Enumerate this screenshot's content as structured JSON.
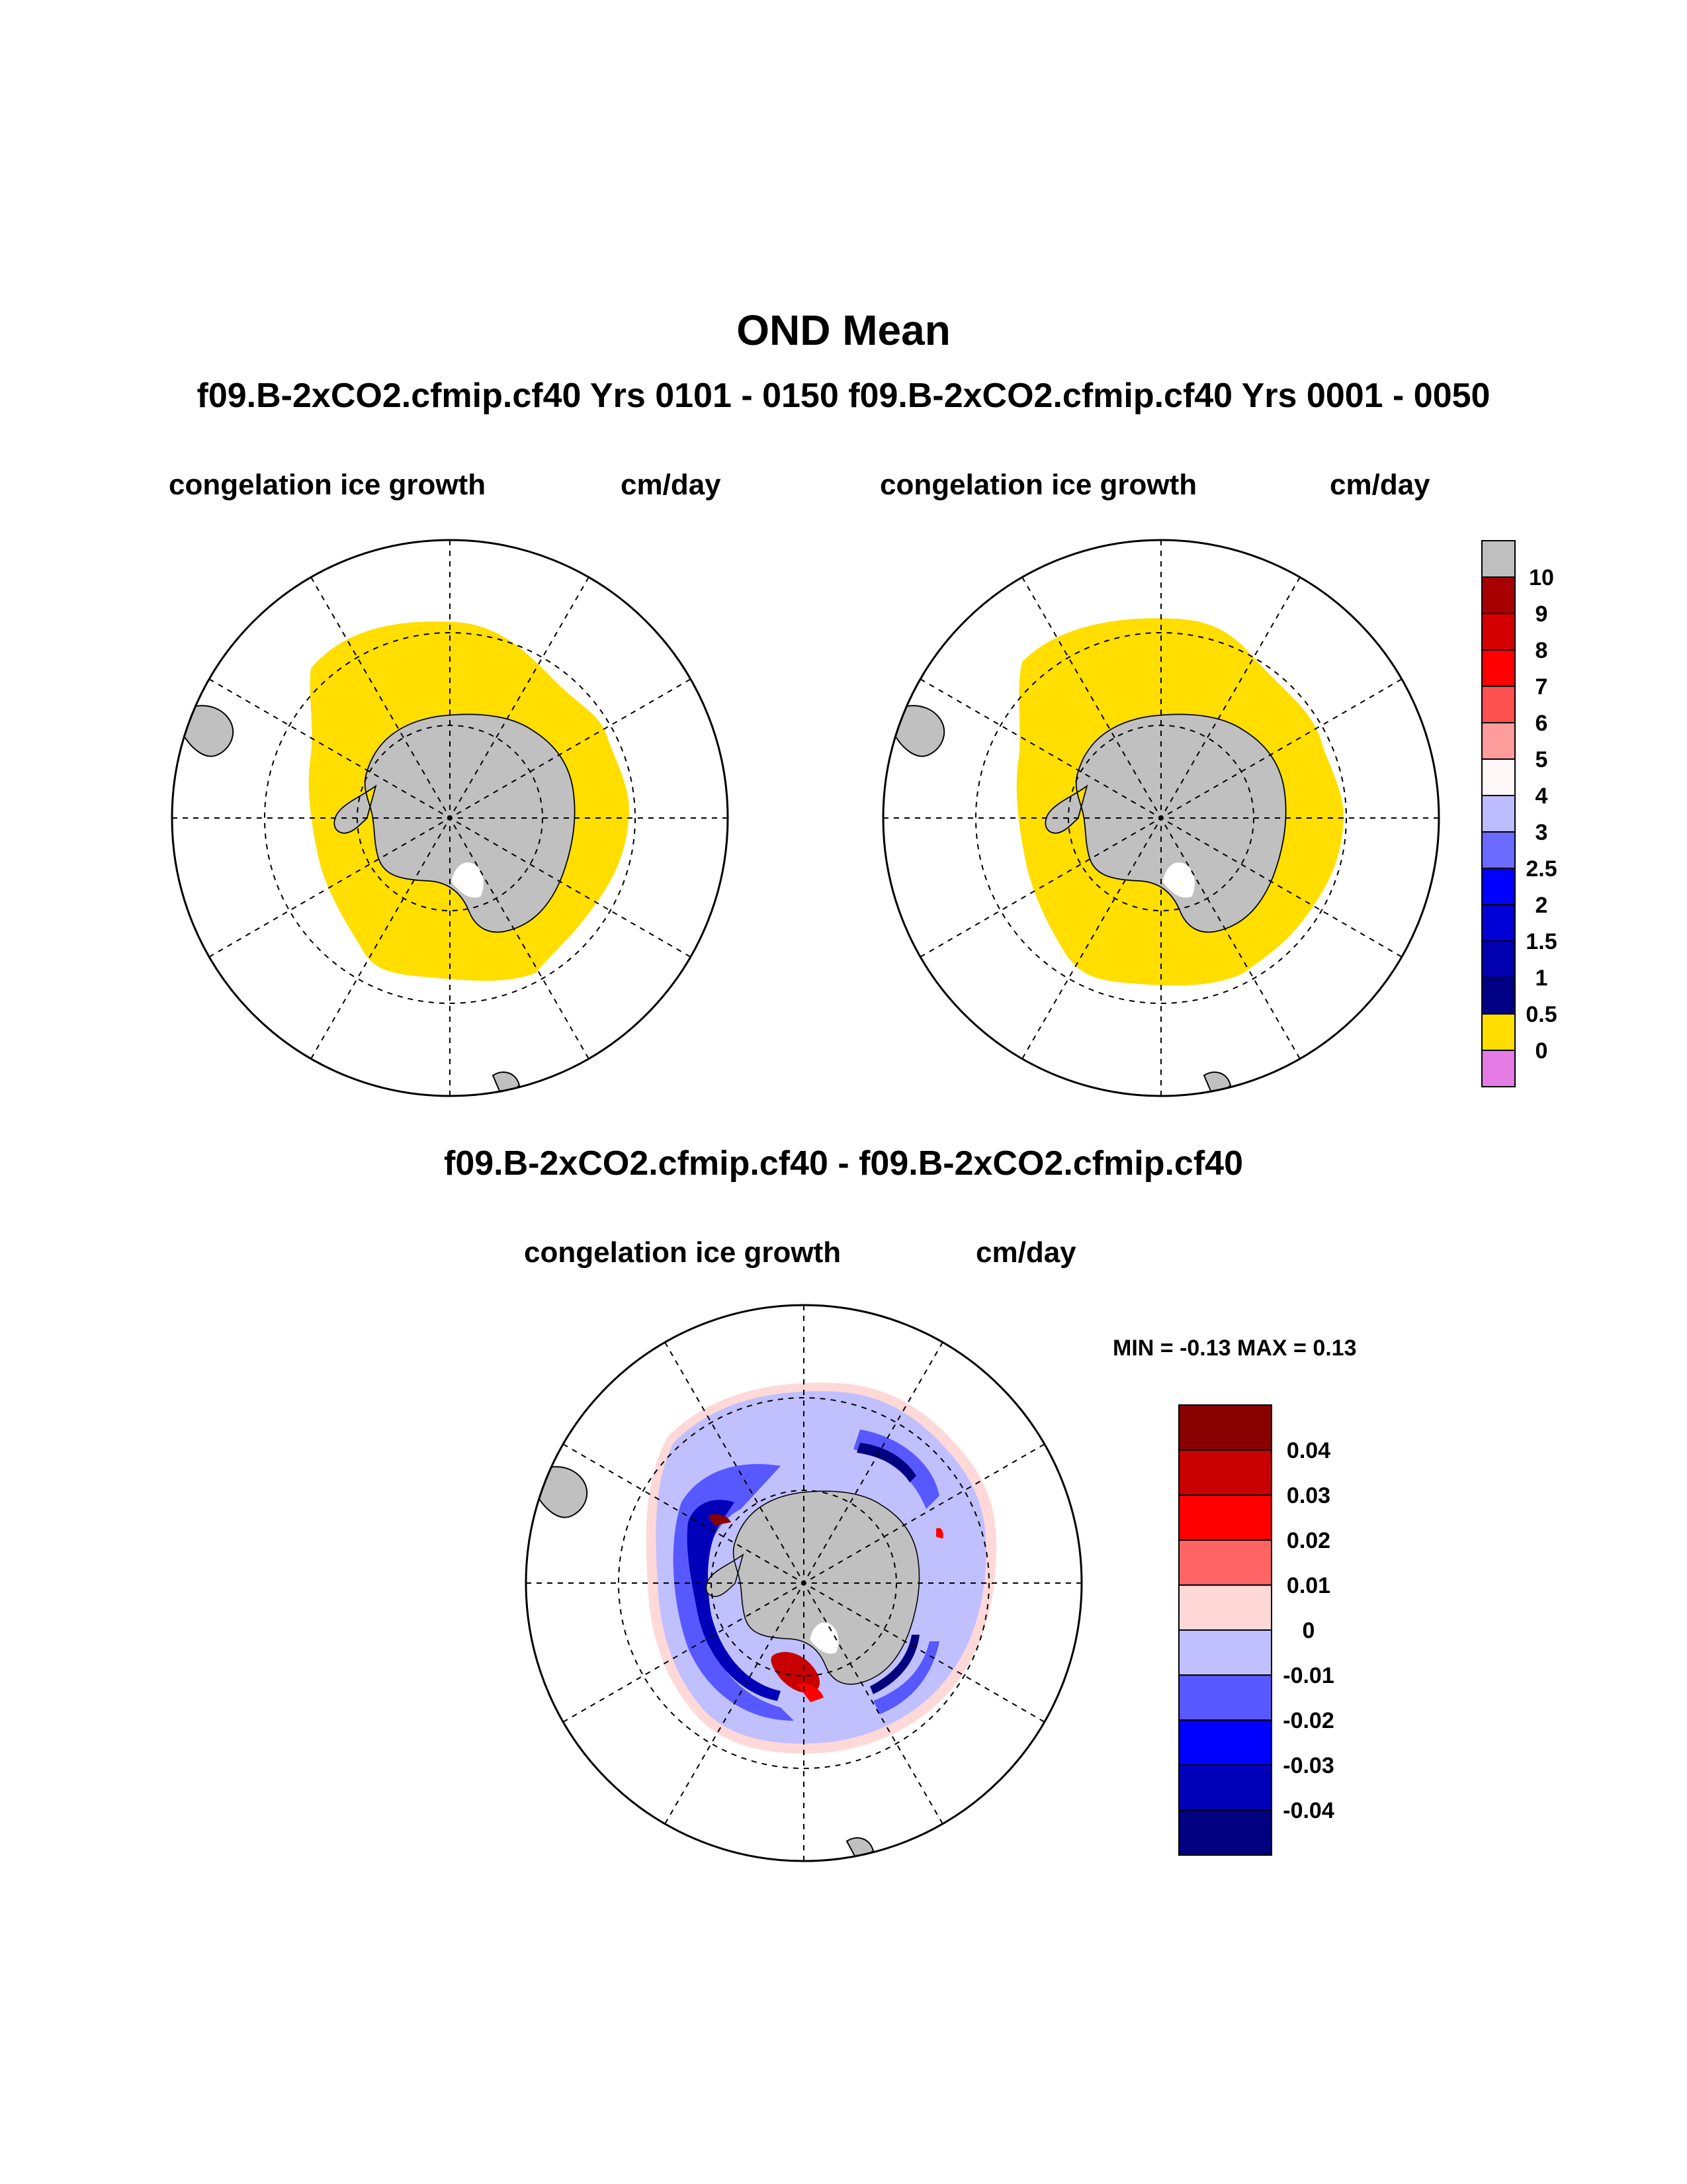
{
  "title": "OND Mean",
  "subtitle": "f09.B-2xCO2.cfmip.cf40  Yrs 0101 - 0150 f09.B-2xCO2.cfmip.cf40  Yrs 0001 - 0050",
  "panels": {
    "left": {
      "variable": "congelation ice growth",
      "units": "cm/day"
    },
    "right": {
      "variable": "congelation ice growth",
      "units": "cm/day"
    },
    "difference": {
      "title": "f09.B-2xCO2.cfmip.cf40 - f09.B-2xCO2.cfmip.cf40",
      "variable": "congelation ice growth",
      "units": "cm/day",
      "minmax": "MIN =  -0.13 MAX =   0.13"
    }
  },
  "colors": {
    "land": "#c0c0c0",
    "ice_yellow": "#ffde00",
    "abs_scale": [
      "#e57be5",
      "#ffde00",
      "#000085",
      "#0000b0",
      "#0000d6",
      "#0000ff",
      "#6b6bff",
      "#bcbcff",
      "#fff8f8",
      "#ff9c9c",
      "#ff5050",
      "#ff0000",
      "#d40000",
      "#a80000",
      "#bfbfbf"
    ],
    "diff_scale": [
      "#000080",
      "#0000b8",
      "#0000ff",
      "#5858ff",
      "#c0c0ff",
      "#ffd8d8",
      "#ff6464",
      "#ff0000",
      "#c80000",
      "#880000"
    ]
  },
  "chart_data": [
    {
      "type": "heatmap",
      "projection": "south polar stereographic",
      "title": "congelation ice growth",
      "units": "cm/day",
      "case": "f09.B-2xCO2.cfmip.cf40  Yrs 0101 - 0150",
      "description_values": "sea ice zone mostly in the 0 to 0.5 cm/day bin"
    },
    {
      "type": "heatmap",
      "projection": "south polar stereographic",
      "title": "congelation ice growth",
      "units": "cm/day",
      "case": "f09.B-2xCO2.cfmip.cf40  Yrs 0001 - 0050",
      "description_values": "sea ice zone mostly in the 0 to 0.5 cm/day bin"
    },
    {
      "type": "heatmap",
      "projection": "south polar stereographic",
      "title": "congelation ice growth",
      "units": "cm/day",
      "case": "f09.B-2xCO2.cfmip.cf40 - f09.B-2xCO2.cfmip.cf40",
      "min": -0.13,
      "max": 0.13
    }
  ],
  "legend_abs": {
    "labels": [
      "10",
      "9",
      "8",
      "7",
      "6",
      "5",
      "4",
      "3",
      "2.5",
      "2",
      "1.5",
      "1",
      "0.5",
      "0"
    ]
  },
  "legend_diff": {
    "labels": [
      "0.04",
      "0.03",
      "0.02",
      "0.01",
      "0",
      "-0.01",
      "-0.02",
      "-0.03",
      "-0.04"
    ]
  }
}
